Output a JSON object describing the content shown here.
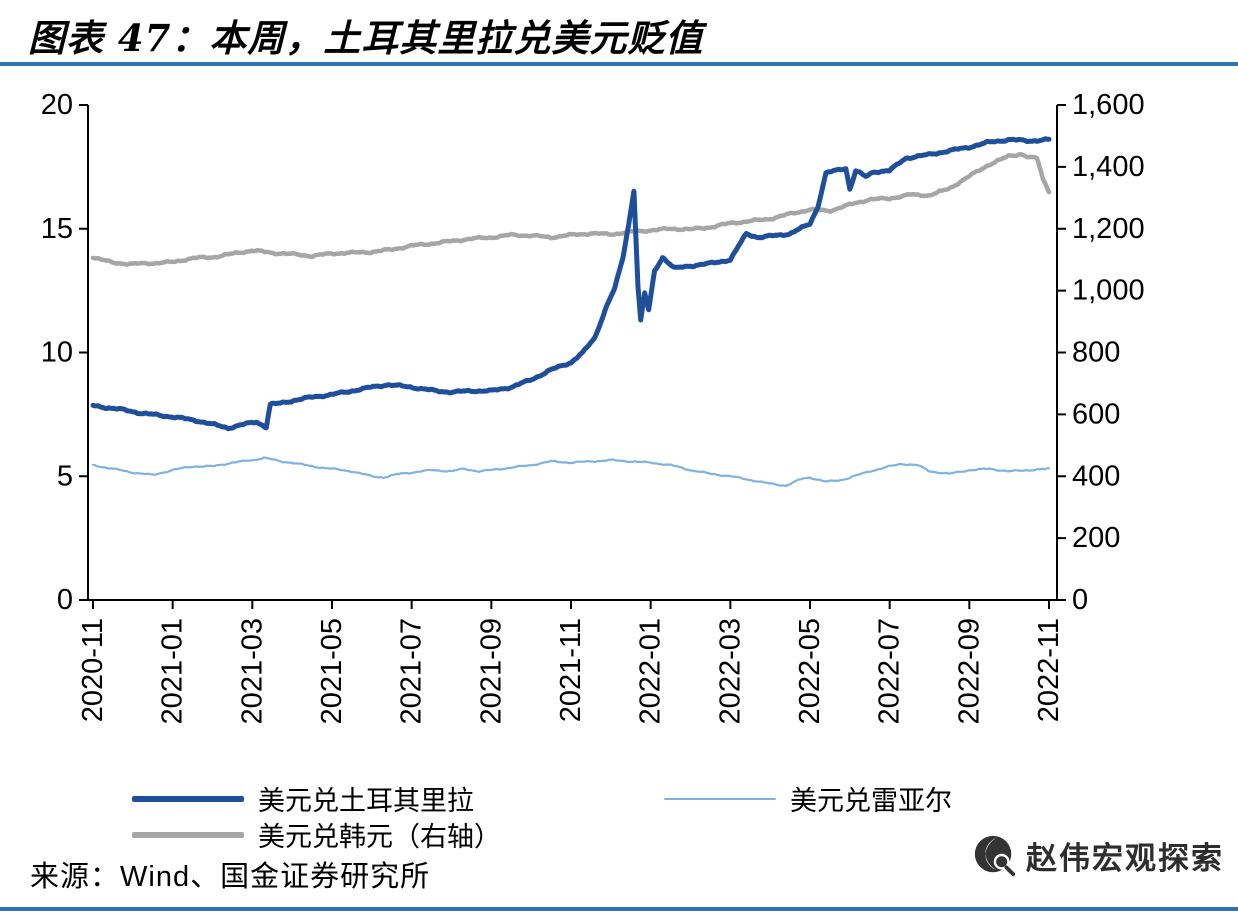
{
  "accent_color": "#2e74b5",
  "header": {
    "title": "图表 47：本周，土耳其里拉兑美元贬值"
  },
  "chart_data": {
    "type": "line",
    "title": "图表 47：本周，土耳其里拉兑美元贬值",
    "grid": false,
    "legend_position": "bottom",
    "x_axis": {
      "unit": "months_since_2020-11",
      "months_span": 24,
      "tick_labels": [
        "2020-11",
        "2021-01",
        "2021-03",
        "2021-05",
        "2021-07",
        "2021-09",
        "2021-11",
        "2022-01",
        "2022-03",
        "2022-05",
        "2022-07",
        "2022-09",
        "2022-11"
      ]
    },
    "left_axis": {
      "min": 0,
      "max": 20,
      "tick_labels": [
        "0",
        "5",
        "10",
        "15",
        "20"
      ]
    },
    "right_axis": {
      "min": 0,
      "max": 1600,
      "tick_labels": [
        "0",
        "200",
        "400",
        "600",
        "800",
        "1,000",
        "1,200",
        "1,400",
        "1,600"
      ]
    },
    "series": [
      {
        "name": "美元兑土耳其里拉",
        "axis": "left",
        "color": "#1f4e9b",
        "x": [
          0,
          0.7,
          1.2,
          2,
          2.6,
          3,
          3.4,
          3.8,
          4.1,
          4.35,
          4.45,
          4.7,
          5,
          5.5,
          6,
          6.5,
          7,
          7.4,
          8,
          8.6,
          9,
          9.5,
          10,
          10.5,
          11,
          11.5,
          12,
          12.3,
          12.6,
          12.9,
          13.1,
          13.3,
          13.45,
          13.58,
          13.68,
          13.75,
          13.85,
          13.95,
          14.1,
          14.3,
          14.6,
          15,
          15.5,
          16,
          16.4,
          16.7,
          17,
          17.5,
          18,
          18.2,
          18.4,
          18.9,
          19.0,
          19.15,
          19.4,
          19.6,
          20,
          20.4,
          20.8,
          21,
          21.5,
          22,
          22.5,
          23,
          23.5,
          24
        ],
        "values": [
          7.85,
          7.7,
          7.55,
          7.4,
          7.25,
          7.1,
          6.95,
          7.1,
          7.2,
          6.98,
          7.9,
          7.95,
          8.05,
          8.2,
          8.3,
          8.45,
          8.6,
          8.7,
          8.6,
          8.45,
          8.4,
          8.45,
          8.45,
          8.6,
          8.9,
          9.3,
          9.6,
          10.0,
          10.6,
          11.9,
          12.6,
          13.8,
          15.2,
          16.55,
          12.7,
          11.3,
          12.4,
          11.7,
          13.3,
          13.85,
          13.4,
          13.5,
          13.6,
          13.75,
          14.8,
          14.65,
          14.7,
          14.8,
          15.2,
          15.9,
          17.25,
          17.45,
          16.6,
          17.35,
          17.1,
          17.3,
          17.35,
          17.85,
          17.95,
          18.0,
          18.15,
          18.3,
          18.5,
          18.6,
          18.55,
          18.6
        ]
      },
      {
        "name": "美元兑韩元（右轴）",
        "axis": "right",
        "color": "#a6a6a6",
        "x": [
          0,
          0.5,
          1,
          2,
          2.5,
          3,
          4,
          4.5,
          5,
          5.5,
          6,
          7,
          7.5,
          8,
          8.5,
          9,
          9.5,
          10,
          10.5,
          11,
          11.5,
          12,
          12.5,
          13,
          13.5,
          14,
          14.5,
          15,
          15.5,
          16,
          16.5,
          17,
          17.5,
          18,
          18.5,
          19,
          19.5,
          20,
          20.5,
          21,
          21.5,
          22,
          22.5,
          23,
          23.3,
          23.5,
          23.7,
          23.85,
          24
        ],
        "values": [
          1108,
          1090,
          1086,
          1092,
          1105,
          1108,
          1130,
          1122,
          1118,
          1112,
          1120,
          1125,
          1133,
          1145,
          1152,
          1160,
          1168,
          1172,
          1180,
          1178,
          1172,
          1180,
          1185,
          1182,
          1190,
          1195,
          1200,
          1198,
          1205,
          1218,
          1225,
          1232,
          1248,
          1262,
          1258,
          1278,
          1295,
          1298,
          1310,
          1308,
          1330,
          1370,
          1408,
          1435,
          1442,
          1430,
          1428,
          1360,
          1322
        ]
      },
      {
        "name": "美元兑雷亚尔",
        "axis": "left",
        "color": "#7fb2e0",
        "x": [
          0,
          0.5,
          1,
          1.5,
          2,
          2.5,
          3,
          3.5,
          4,
          4.3,
          4.7,
          5,
          5.5,
          6,
          6.5,
          7,
          7.3,
          7.7,
          8,
          8.5,
          9,
          9.3,
          9.7,
          10,
          10.5,
          11,
          11.5,
          12,
          12.5,
          13,
          13.5,
          14,
          14.5,
          15,
          15.5,
          16,
          16.5,
          17,
          17.4,
          17.8,
          18,
          18.4,
          18.8,
          19,
          19.5,
          20,
          20.3,
          20.7,
          21,
          21.5,
          22,
          22.5,
          23,
          23.5,
          24
        ],
        "values": [
          5.45,
          5.3,
          5.15,
          5.05,
          5.25,
          5.4,
          5.4,
          5.55,
          5.65,
          5.75,
          5.6,
          5.55,
          5.4,
          5.3,
          5.2,
          5.0,
          4.95,
          5.1,
          5.15,
          5.25,
          5.2,
          5.3,
          5.2,
          5.25,
          5.35,
          5.45,
          5.6,
          5.55,
          5.6,
          5.65,
          5.6,
          5.55,
          5.45,
          5.25,
          5.1,
          5.0,
          4.85,
          4.7,
          4.62,
          4.9,
          4.95,
          4.78,
          4.85,
          4.95,
          5.2,
          5.4,
          5.5,
          5.45,
          5.2,
          5.1,
          5.25,
          5.3,
          5.2,
          5.25,
          5.3
        ]
      }
    ]
  },
  "footer": {
    "source": "来源：Wind、国金证券研究所"
  },
  "watermark": {
    "text": "赵伟宏观探索",
    "logo_icon": "magnifier-globe-icon"
  }
}
